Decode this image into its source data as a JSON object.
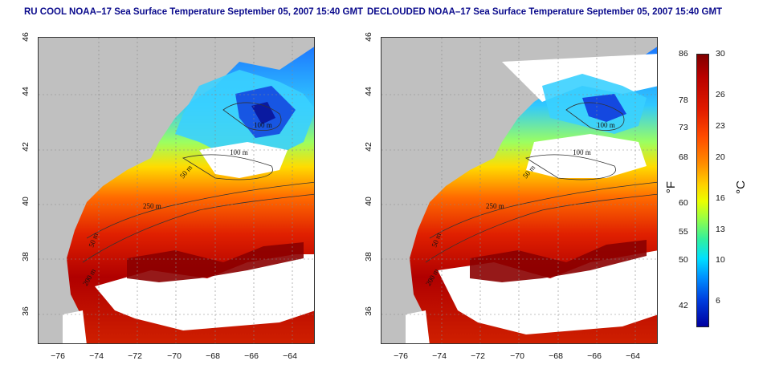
{
  "left_panel": {
    "title": "RU COOL NOAA–17 Sea Surface Temperature September 05, 2007 15:40 GMT"
  },
  "right_panel": {
    "title": "DECLOUDED NOAA–17 Sea Surface Temperature September 05, 2007 15:40 GMT"
  },
  "axes": {
    "lat_ticks": [
      "46",
      "44",
      "42",
      "40",
      "38",
      "36"
    ],
    "lon_ticks": [
      "−76",
      "−74",
      "−72",
      "−70",
      "−68",
      "−66",
      "−64"
    ]
  },
  "contours": {
    "labels": [
      "100 m",
      "100 m",
      "50 m",
      "250 m",
      "50 m",
      "200 m"
    ]
  },
  "colorbar": {
    "fahrenheit_ticks": [
      "86",
      "78",
      "73",
      "68",
      "60",
      "55",
      "50",
      "42"
    ],
    "celsius_ticks": [
      "30",
      "26",
      "23",
      "20",
      "16",
      "13",
      "10",
      "6"
    ],
    "fahrenheit_unit": "°F",
    "celsius_unit": "°C",
    "colors": {
      "land": "#c0c0c0",
      "cloud": "#ffffff",
      "warm": "#8b0000",
      "cold": "#0030c0"
    }
  }
}
